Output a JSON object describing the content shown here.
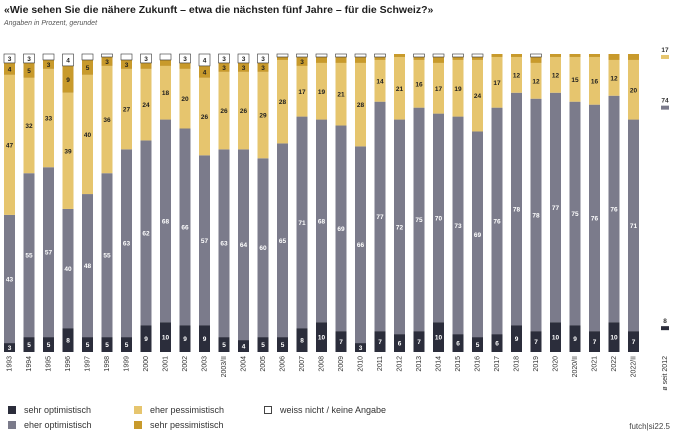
{
  "title": "«Wie sehen Sie die nähere Zukunft – etwa die nächsten fünf Jahre – für die Schweiz?»",
  "subtitle": "Angaben in Prozent, gerundet",
  "source": "futch|si22.5",
  "colors": {
    "sehr_optimistisch": "#2b2d3b",
    "eher_optimistisch": "#7b7b8b",
    "eher_pessimistisch": "#e6c56e",
    "sehr_pessimistisch": "#c89a2c",
    "weiss_nicht": "#ffffff"
  },
  "legend": [
    {
      "key": "sehr_optimistisch",
      "label": "sehr optimistisch"
    },
    {
      "key": "eher_optimistisch",
      "label": "eher optimistisch"
    },
    {
      "key": "eher_pessimistisch",
      "label": "eher pessimistisch"
    },
    {
      "key": "sehr_pessimistisch",
      "label": "sehr pessimistisch"
    },
    {
      "key": "weiss_nicht",
      "label": "weiss nicht / keine Angabe"
    }
  ],
  "chart_data": {
    "type": "bar",
    "stacked": true,
    "title": "«Wie sehen Sie die nähere Zukunft – etwa die nächsten fünf Jahre – für die Schweiz?»",
    "subtitle": "Angaben in Prozent, gerundet",
    "ylim": [
      0,
      100
    ],
    "categories": [
      "1993",
      "1994",
      "1995",
      "1996",
      "1997",
      "1998",
      "1999",
      "2000",
      "2001",
      "2002",
      "2003",
      "2003/II",
      "2004",
      "2005",
      "2006",
      "2007",
      "2008",
      "2009",
      "2010",
      "2011",
      "2012",
      "2013",
      "2014",
      "2015",
      "2016",
      "2017",
      "2018",
      "2019",
      "2020",
      "2020/II",
      "2021",
      "2022",
      "2022/II"
    ],
    "series": [
      {
        "name": "sehr optimistisch",
        "key": "sehr_optimistisch",
        "values": [
          3,
          5,
          5,
          8,
          5,
          5,
          5,
          9,
          10,
          9,
          9,
          5,
          4,
          5,
          5,
          8,
          10,
          7,
          3,
          7,
          6,
          7,
          10,
          6,
          5,
          6,
          9,
          7,
          10,
          9,
          7,
          10,
          7
        ]
      },
      {
        "name": "eher optimistisch",
        "key": "eher_optimistisch",
        "values": [
          43,
          55,
          57,
          40,
          48,
          55,
          63,
          62,
          68,
          66,
          57,
          63,
          64,
          60,
          65,
          71,
          68,
          69,
          66,
          77,
          72,
          75,
          70,
          73,
          69,
          76,
          78,
          78,
          77,
          75,
          76,
          76,
          71
        ]
      },
      {
        "name": "eher pessimistisch",
        "key": "eher_pessimistisch",
        "values": [
          47,
          32,
          33,
          39,
          40,
          36,
          27,
          24,
          18,
          20,
          26,
          26,
          26,
          29,
          28,
          17,
          19,
          21,
          28,
          14,
          21,
          16,
          17,
          19,
          24,
          17,
          12,
          12,
          12,
          15,
          16,
          12,
          20
        ]
      },
      {
        "name": "sehr pessimistisch",
        "key": "sehr_pessimistisch",
        "values": [
          4,
          5,
          3,
          9,
          5,
          3,
          3,
          2,
          2,
          2,
          4,
          3,
          3,
          3,
          1,
          3,
          2,
          2,
          2,
          1,
          1,
          1,
          2,
          1,
          1,
          1,
          1,
          2,
          1,
          1,
          1,
          2,
          2
        ]
      },
      {
        "name": "weiss nicht / keine Angabe",
        "key": "weiss_nicht",
        "values": [
          3,
          3,
          2,
          4,
          2,
          1,
          2,
          3,
          2,
          3,
          4,
          3,
          3,
          3,
          1,
          1,
          1,
          1,
          1,
          1,
          0,
          1,
          1,
          1,
          1,
          0,
          0,
          1,
          0,
          0,
          0,
          0,
          0
        ]
      }
    ],
    "label_threshold": 3,
    "trend": {
      "label": "ø seit 2012",
      "values": {
        "sehr_optimistisch": 8,
        "eher_optimistisch": 74,
        "eher_pessimistisch": 17
      }
    }
  }
}
